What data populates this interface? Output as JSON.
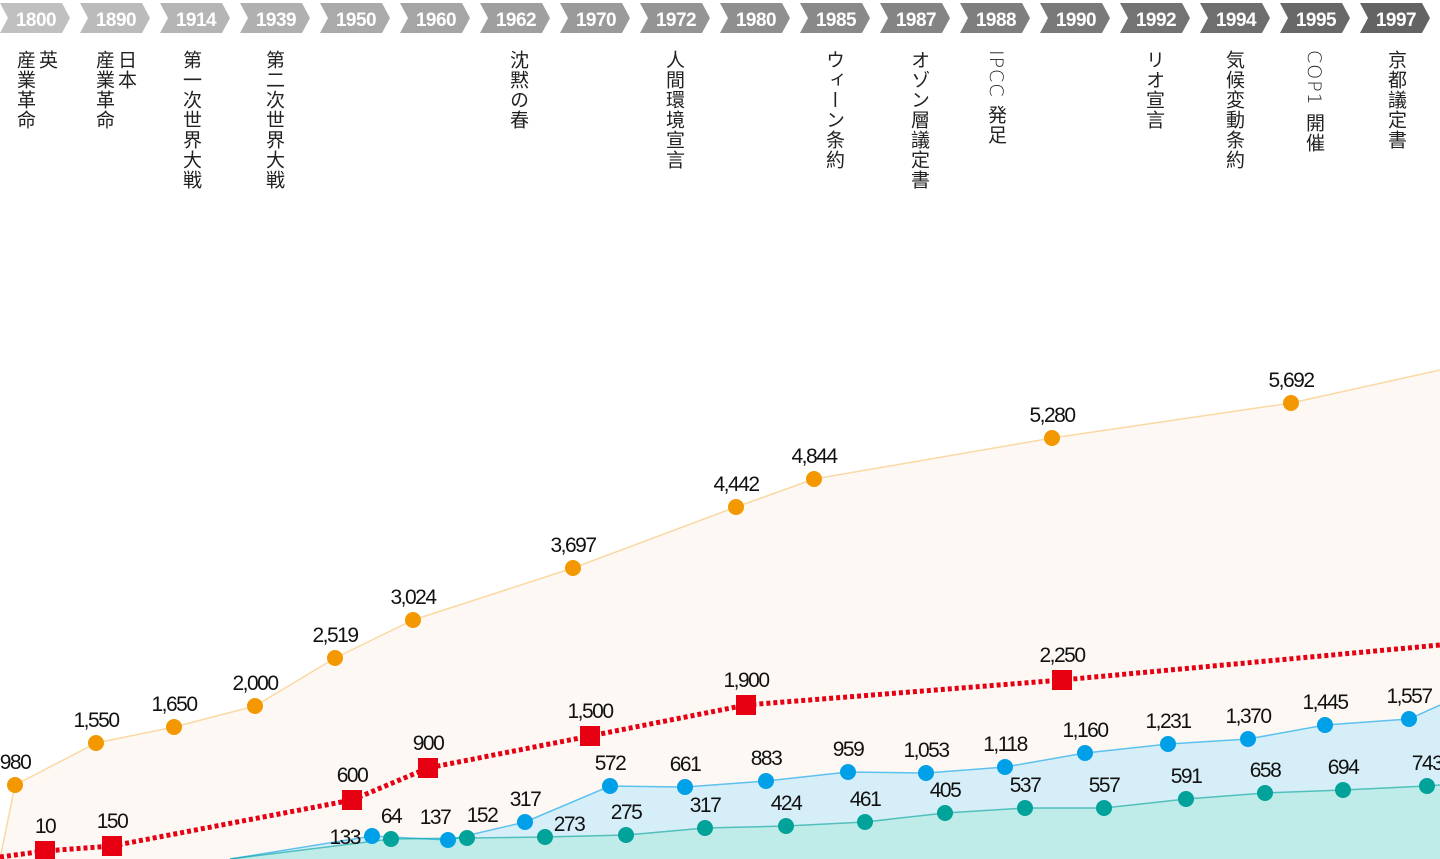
{
  "chart_data": {
    "type": "line",
    "title": "",
    "timeline": {
      "years": [
        "1800",
        "1890",
        "1914",
        "1939",
        "1950",
        "1960",
        "1962",
        "1970",
        "1972",
        "1980",
        "1985",
        "1987",
        "1988",
        "1990",
        "1992",
        "1994",
        "1995",
        "1997"
      ],
      "events": [
        {
          "year": "1800",
          "text": "英\n産業革命"
        },
        {
          "year": "1890",
          "text": "日本\n産業革命"
        },
        {
          "year": "1914",
          "text": "第一次世界大戦"
        },
        {
          "year": "1939",
          "text": "第二次世界大戦"
        },
        {
          "year": "1962",
          "text": "沈黙の春"
        },
        {
          "year": "1972",
          "text": "人間環境宣言"
        },
        {
          "year": "1985",
          "text": "ウィーン条約"
        },
        {
          "year": "1987",
          "text": "オゾン層議定書"
        },
        {
          "year": "1988",
          "text": "IPCC 発足"
        },
        {
          "year": "1992",
          "text": "リオ宣言"
        },
        {
          "year": "1994",
          "text": "気候変動条約"
        },
        {
          "year": "1995",
          "text": "COP1 開催"
        },
        {
          "year": "1997",
          "text": "京都議定書"
        }
      ]
    },
    "series": [
      {
        "name": "orange",
        "color": "#f39800",
        "fill": "#fdf8f4",
        "marker": "circle",
        "dashed": false,
        "values": [
          980,
          1550,
          1650,
          2000,
          2519,
          3024,
          3697,
          4442,
          4844,
          5280,
          5692
        ],
        "labels": [
          "980",
          "1,550",
          "1,650",
          "2,000",
          "2,519",
          "3,024",
          "3,697",
          "4,442",
          "4,844",
          "5,280",
          "5,692"
        ]
      },
      {
        "name": "red",
        "color": "#e60012",
        "marker": "square",
        "dashed": true,
        "values": [
          10,
          150,
          600,
          900,
          1500,
          1900,
          2250
        ],
        "labels": [
          "10",
          "150",
          "600",
          "900",
          "1,500",
          "1,900",
          "2,250"
        ]
      },
      {
        "name": "blue",
        "color": "#00a0e9",
        "fill": "#d6eef8",
        "marker": "circle",
        "dashed": false,
        "values": [
          133,
          137,
          317,
          572,
          661,
          883,
          959,
          1053,
          1118,
          1160,
          1231,
          1370,
          1445,
          1557
        ],
        "labels": [
          "133",
          "137",
          "317",
          "572",
          "661",
          "883",
          "959",
          "1,053",
          "1,118",
          "1,160",
          "1,231",
          "1,370",
          "1,445",
          "1,557"
        ]
      },
      {
        "name": "teal",
        "color": "#00a29a",
        "fill": "#bfece8",
        "marker": "circle",
        "dashed": false,
        "values": [
          64,
          152,
          273,
          275,
          317,
          424,
          461,
          405,
          537,
          557,
          591,
          658,
          694,
          743
        ],
        "labels": [
          "64",
          "152",
          "273",
          "275",
          "317",
          "424",
          "461",
          "405",
          "537",
          "557",
          "591",
          "658",
          "694",
          "743"
        ]
      }
    ],
    "grid": false,
    "legend": "none"
  }
}
